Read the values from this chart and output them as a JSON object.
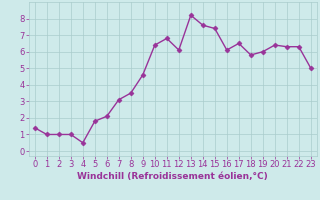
{
  "x": [
    0,
    1,
    2,
    3,
    4,
    5,
    6,
    7,
    8,
    9,
    10,
    11,
    12,
    13,
    14,
    15,
    16,
    17,
    18,
    19,
    20,
    21,
    22,
    23
  ],
  "y": [
    1.4,
    1.0,
    1.0,
    1.0,
    0.5,
    1.8,
    2.1,
    3.1,
    3.5,
    4.6,
    6.4,
    6.8,
    6.1,
    8.2,
    7.6,
    7.4,
    6.1,
    6.5,
    5.8,
    6.0,
    6.4,
    6.3,
    6.3,
    5.0
  ],
  "line_color": "#993399",
  "marker": "D",
  "marker_size": 2.5,
  "bg_color": "#ceeaea",
  "grid_color": "#aacccc",
  "xlabel": "Windchill (Refroidissement éolien,°C)",
  "xlabel_color": "#993399",
  "tick_color": "#993399",
  "xlim": [
    -0.5,
    23.5
  ],
  "ylim": [
    -0.3,
    9.0
  ],
  "yticks": [
    0,
    1,
    2,
    3,
    4,
    5,
    6,
    7,
    8
  ],
  "xticks": [
    0,
    1,
    2,
    3,
    4,
    5,
    6,
    7,
    8,
    9,
    10,
    11,
    12,
    13,
    14,
    15,
    16,
    17,
    18,
    19,
    20,
    21,
    22,
    23
  ],
  "xtick_labels": [
    "0",
    "1",
    "2",
    "3",
    "4",
    "5",
    "6",
    "7",
    "8",
    "9",
    "10",
    "11",
    "12",
    "13",
    "14",
    "15",
    "16",
    "17",
    "18",
    "19",
    "20",
    "21",
    "22",
    "23"
  ],
  "line_width": 1.0,
  "font_size": 6,
  "label_font_size": 6.5
}
